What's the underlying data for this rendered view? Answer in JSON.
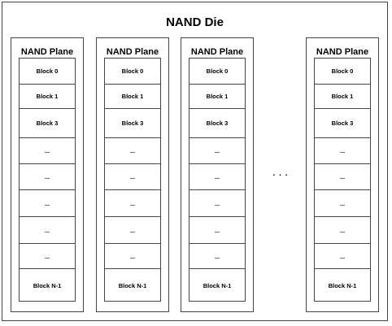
{
  "die": {
    "title": "NAND Die"
  },
  "planes": [
    {
      "title": "NAND Plane",
      "blocks": [
        "Block 0",
        "Block 1",
        "Block 3",
        "...",
        "...",
        "...",
        "...",
        "...",
        "Block N-1"
      ]
    },
    {
      "title": "NAND Plane",
      "blocks": [
        "Block 0",
        "Block 1",
        "Block 3",
        "...",
        "...",
        "...",
        "...",
        "...",
        "Block N-1"
      ]
    },
    {
      "title": "NAND Plane",
      "blocks": [
        "Block 0",
        "Block 1",
        "Block 3",
        "...",
        "...",
        "...",
        "...",
        "...",
        "Block N-1"
      ]
    },
    {
      "title": "NAND Plane",
      "blocks": [
        "Block 0",
        "Block 1",
        "Block 3",
        "...",
        "...",
        "...",
        "...",
        "...",
        "Block N-1"
      ]
    }
  ],
  "gap_ellipsis": ". . ."
}
